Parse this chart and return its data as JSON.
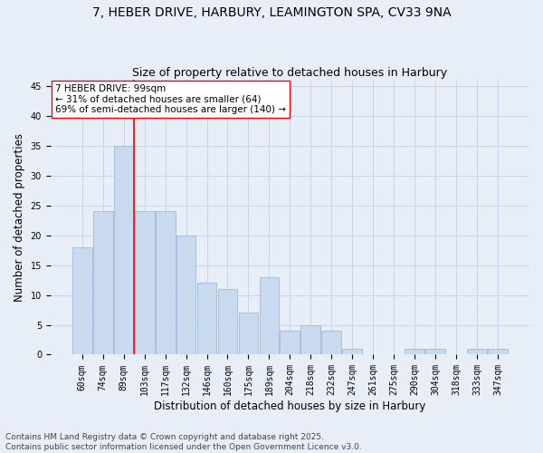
{
  "title_line1": "7, HEBER DRIVE, HARBURY, LEAMINGTON SPA, CV33 9NA",
  "title_line2": "Size of property relative to detached houses in Harbury",
  "xlabel": "Distribution of detached houses by size in Harbury",
  "ylabel": "Number of detached properties",
  "bar_labels": [
    "60sqm",
    "74sqm",
    "89sqm",
    "103sqm",
    "117sqm",
    "132sqm",
    "146sqm",
    "160sqm",
    "175sqm",
    "189sqm",
    "204sqm",
    "218sqm",
    "232sqm",
    "247sqm",
    "261sqm",
    "275sqm",
    "290sqm",
    "304sqm",
    "318sqm",
    "333sqm",
    "347sqm"
  ],
  "bar_values": [
    18,
    24,
    35,
    24,
    24,
    20,
    12,
    11,
    7,
    13,
    4,
    5,
    4,
    1,
    0,
    0,
    1,
    1,
    0,
    1,
    1
  ],
  "bar_color": "#c9d9f0",
  "bar_edgecolor": "#a0b8d8",
  "grid_color": "#c8d4e8",
  "background_color": "#e8eef8",
  "vline_x": 2.5,
  "vline_color": "red",
  "annotation_text": "7 HEBER DRIVE: 99sqm\n← 31% of detached houses are smaller (64)\n69% of semi-detached houses are larger (140) →",
  "annotation_box_color": "white",
  "annotation_box_edgecolor": "red",
  "ylim": [
    0,
    46
  ],
  "yticks": [
    0,
    5,
    10,
    15,
    20,
    25,
    30,
    35,
    40,
    45
  ],
  "footer_text": "Contains HM Land Registry data © Crown copyright and database right 2025.\nContains public sector information licensed under the Open Government Licence v3.0.",
  "title_fontsize": 10,
  "subtitle_fontsize": 9,
  "axis_label_fontsize": 8.5,
  "tick_fontsize": 7,
  "annotation_fontsize": 7.5,
  "footer_fontsize": 6.5
}
